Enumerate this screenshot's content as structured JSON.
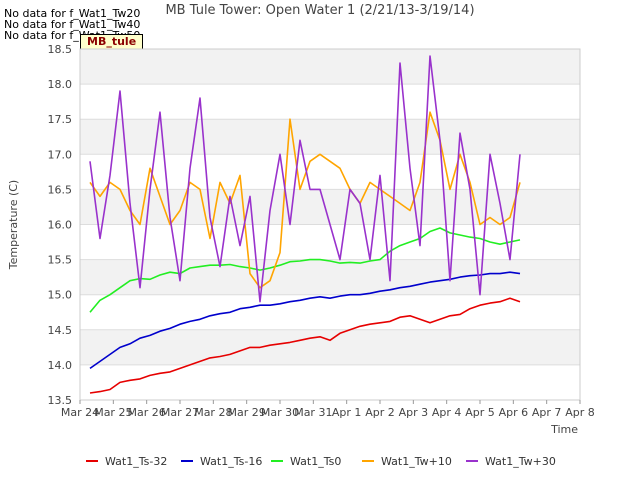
{
  "title": "MB Tule Tower: Open Water 1 (2/21/13-3/19/14)",
  "no_data_messages": [
    "No data for f_Wat1_Tw20",
    "No data for f_Wat1_Tw40",
    "No data for f_Wat1_Tw50"
  ],
  "site_label": "MB_tule",
  "colors": {
    "Wat1_Ts-32": "#e60000",
    "Wat1_Ts-16": "#0000cc",
    "Wat1_Ts0": "#22ee22",
    "Wat1_Tw+10": "#ffa500",
    "Wat1_Tw+30": "#9932cc",
    "band": "#f2f2f2",
    "grid": "#dddddd"
  },
  "chart_data": {
    "type": "line",
    "xlabel": "Time",
    "ylabel": "Temperature (C)",
    "ylim": [
      13.5,
      18.5
    ],
    "xlim": [
      "Mar 24",
      "Apr 8"
    ],
    "x_ticks": [
      "Mar 24",
      "Mar 25",
      "Mar 26",
      "Mar 27",
      "Mar 28",
      "Mar 29",
      "Mar 30",
      "Mar 31",
      "Apr 1",
      "Apr 2",
      "Apr 3",
      "Apr 4",
      "Apr 5",
      "Apr 6",
      "Apr 7",
      "Apr 8"
    ],
    "y_ticks": [
      "13.5",
      "14.0",
      "14.5",
      "15.0",
      "15.5",
      "16.0",
      "16.5",
      "17.0",
      "17.5",
      "18.0",
      "18.5"
    ],
    "grid": true,
    "legend_position": "bottom",
    "x_day_values": [
      24.3,
      24.6,
      24.9,
      25.2,
      25.5,
      25.8,
      26.1,
      26.4,
      26.7,
      27.0,
      27.3,
      27.6,
      27.9,
      28.2,
      28.5,
      28.8,
      29.1,
      29.4,
      29.7,
      30.0,
      30.3,
      30.6,
      30.9,
      31.2,
      31.5,
      31.8,
      32.1,
      32.4,
      32.7,
      33.0,
      33.3,
      33.6,
      33.9,
      34.2,
      34.5,
      34.8,
      35.1,
      35.4,
      35.7,
      36.0,
      36.3,
      36.6,
      36.9,
      37.2
    ],
    "series": [
      {
        "name": "Wat1_Ts-32",
        "values": [
          13.6,
          13.62,
          13.65,
          13.75,
          13.78,
          13.8,
          13.85,
          13.88,
          13.9,
          13.95,
          14.0,
          14.05,
          14.1,
          14.12,
          14.15,
          14.2,
          14.25,
          14.25,
          14.28,
          14.3,
          14.32,
          14.35,
          14.38,
          14.4,
          14.35,
          14.45,
          14.5,
          14.55,
          14.58,
          14.6,
          14.62,
          14.68,
          14.7,
          14.65,
          14.6,
          14.65,
          14.7,
          14.72,
          14.8,
          14.85,
          14.88,
          14.9,
          14.95,
          14.9
        ]
      },
      {
        "name": "Wat1_Ts-16",
        "values": [
          13.95,
          14.05,
          14.15,
          14.25,
          14.3,
          14.38,
          14.42,
          14.48,
          14.52,
          14.58,
          14.62,
          14.65,
          14.7,
          14.73,
          14.75,
          14.8,
          14.82,
          14.85,
          14.85,
          14.87,
          14.9,
          14.92,
          14.95,
          14.97,
          14.95,
          14.98,
          15.0,
          15.0,
          15.02,
          15.05,
          15.07,
          15.1,
          15.12,
          15.15,
          15.18,
          15.2,
          15.22,
          15.25,
          15.27,
          15.28,
          15.3,
          15.3,
          15.32,
          15.3
        ]
      },
      {
        "name": "Wat1_Ts0",
        "values": [
          14.75,
          14.92,
          15.0,
          15.1,
          15.2,
          15.23,
          15.22,
          15.28,
          15.32,
          15.3,
          15.38,
          15.4,
          15.42,
          15.42,
          15.43,
          15.4,
          15.38,
          15.35,
          15.38,
          15.42,
          15.47,
          15.48,
          15.5,
          15.5,
          15.48,
          15.45,
          15.46,
          15.45,
          15.48,
          15.5,
          15.62,
          15.7,
          15.75,
          15.8,
          15.9,
          15.95,
          15.88,
          15.85,
          15.82,
          15.8,
          15.75,
          15.72,
          15.75,
          15.78
        ]
      },
      {
        "name": "Wat1_Tw+10",
        "values": [
          16.6,
          16.4,
          16.6,
          16.5,
          16.2,
          16.0,
          16.8,
          16.4,
          16.0,
          16.2,
          16.6,
          16.5,
          15.8,
          16.6,
          16.3,
          16.7,
          15.3,
          15.1,
          15.2,
          15.6,
          17.5,
          16.5,
          16.9,
          17.0,
          16.9,
          16.8,
          16.5,
          16.3,
          16.6,
          16.5,
          16.4,
          16.3,
          16.2,
          16.6,
          17.6,
          17.2,
          16.5,
          17.0,
          16.6,
          16.0,
          16.1,
          16.0,
          16.1,
          16.6
        ]
      },
      {
        "name": "Wat1_Tw+30",
        "values": [
          16.9,
          15.8,
          16.7,
          17.9,
          16.3,
          15.1,
          16.5,
          17.6,
          16.1,
          15.2,
          16.8,
          17.8,
          16.1,
          15.4,
          16.4,
          15.7,
          16.4,
          14.9,
          16.2,
          17.0,
          16.0,
          17.2,
          16.5,
          16.5,
          16.0,
          15.5,
          16.5,
          16.3,
          15.5,
          16.7,
          15.2,
          18.3,
          16.8,
          15.7,
          18.4,
          17.2,
          15.2,
          17.3,
          16.5,
          15.0,
          17.0,
          16.3,
          15.5,
          17.0
        ]
      }
    ]
  }
}
